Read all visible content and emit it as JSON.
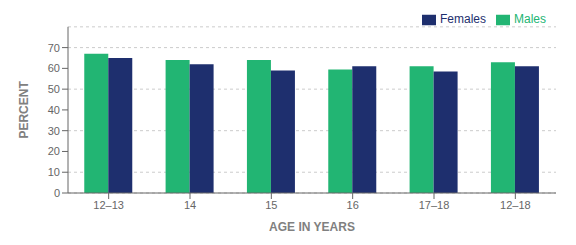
{
  "chart_data": {
    "type": "bar",
    "categories": [
      "12–13",
      "14",
      "15",
      "16",
      "17–18",
      "12–18"
    ],
    "series": [
      {
        "name": "Males",
        "color": "#22b573",
        "values": [
          67,
          64,
          64,
          59.5,
          61,
          63
        ]
      },
      {
        "name": "Females",
        "color": "#1e2f6e",
        "values": [
          65,
          62,
          59,
          61,
          58.5,
          61
        ]
      }
    ],
    "xlabel": "AGE IN YEARS",
    "ylabel": "PERCENT",
    "ylim": [
      0,
      80
    ],
    "yticks": [
      0,
      10,
      20,
      30,
      40,
      50,
      60,
      70
    ],
    "legend": "upper right",
    "grid": true
  }
}
